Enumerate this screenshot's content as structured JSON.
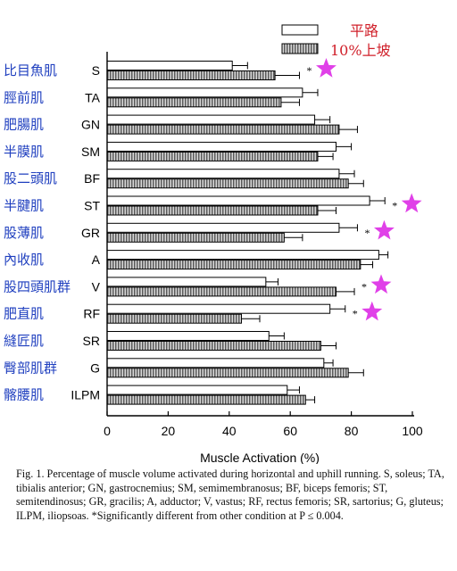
{
  "chart_data": {
    "type": "bar",
    "orientation": "horizontal",
    "xlabel": "Muscle Activation (%)",
    "xlim": [
      0,
      100
    ],
    "xticks": [
      0,
      20,
      40,
      60,
      80,
      100
    ],
    "legend": {
      "placement": "top-right"
    },
    "series": [
      {
        "name": "平路",
        "style": "open",
        "color": "#ffffff"
      },
      {
        "name": "10%上坡",
        "style": "hatched",
        "color": "#7a7a7a"
      }
    ],
    "categories": [
      {
        "abbr": "S",
        "jp": "比目魚肌",
        "flat": 41,
        "flat_err": 5,
        "uphill": 55,
        "uphill_err": 8,
        "sig": true,
        "star": true
      },
      {
        "abbr": "TA",
        "jp": "脛前肌",
        "flat": 64,
        "flat_err": 5,
        "uphill": 57,
        "uphill_err": 6,
        "sig": false,
        "star": false
      },
      {
        "abbr": "GN",
        "jp": "肥腸肌",
        "flat": 68,
        "flat_err": 5,
        "uphill": 76,
        "uphill_err": 6,
        "sig": false,
        "star": false
      },
      {
        "abbr": "SM",
        "jp": "半膜肌",
        "flat": 75,
        "flat_err": 5,
        "uphill": 69,
        "uphill_err": 5,
        "sig": false,
        "star": false
      },
      {
        "abbr": "BF",
        "jp": "股二頭肌",
        "flat": 76,
        "flat_err": 5,
        "uphill": 79,
        "uphill_err": 5,
        "sig": false,
        "star": false
      },
      {
        "abbr": "ST",
        "jp": "半腱肌",
        "flat": 86,
        "flat_err": 5,
        "uphill": 69,
        "uphill_err": 6,
        "sig": true,
        "star": true
      },
      {
        "abbr": "GR",
        "jp": "股薄肌",
        "flat": 76,
        "flat_err": 6,
        "uphill": 58,
        "uphill_err": 6,
        "sig": true,
        "star": true
      },
      {
        "abbr": "A",
        "jp": "內收肌",
        "flat": 89,
        "flat_err": 3,
        "uphill": 83,
        "uphill_err": 4,
        "sig": false,
        "star": false
      },
      {
        "abbr": "V",
        "jp": "股四頭肌群",
        "flat": 52,
        "flat_err": 4,
        "uphill": 75,
        "uphill_err": 6,
        "sig": true,
        "star": true
      },
      {
        "abbr": "RF",
        "jp": "肥直肌",
        "flat": 73,
        "flat_err": 5,
        "uphill": 44,
        "uphill_err": 6,
        "sig": true,
        "star": true
      },
      {
        "abbr": "SR",
        "jp": "縫匠肌",
        "flat": 53,
        "flat_err": 5,
        "uphill": 70,
        "uphill_err": 5,
        "sig": false,
        "star": false
      },
      {
        "abbr": "G",
        "jp": "臀部肌群",
        "flat": 71,
        "flat_err": 3,
        "uphill": 79,
        "uphill_err": 5,
        "sig": false,
        "star": false
      },
      {
        "abbr": "ILPM",
        "jp": "髂腰肌",
        "flat": 59,
        "flat_err": 4,
        "uphill": 65,
        "uphill_err": 3,
        "sig": false,
        "star": false
      }
    ],
    "sig_marker": "*",
    "star_color": "#e040e8"
  },
  "caption": {
    "lead": "Fig. 1.",
    "text": " Percentage of muscle volume activated during horizontal and uphill running. S, soleus; TA, tibialis anterior; GN, gastrocnemius; SM, semimembranosus; BF, biceps femoris; ST, semitendinosus; GR, gracilis; A, adductor; V, vastus; RF, rectus femoris; SR, sartorius; G, gluteus; ILPM, iliopsoas. *Significantly different from other condition at P ≤ 0.004."
  }
}
